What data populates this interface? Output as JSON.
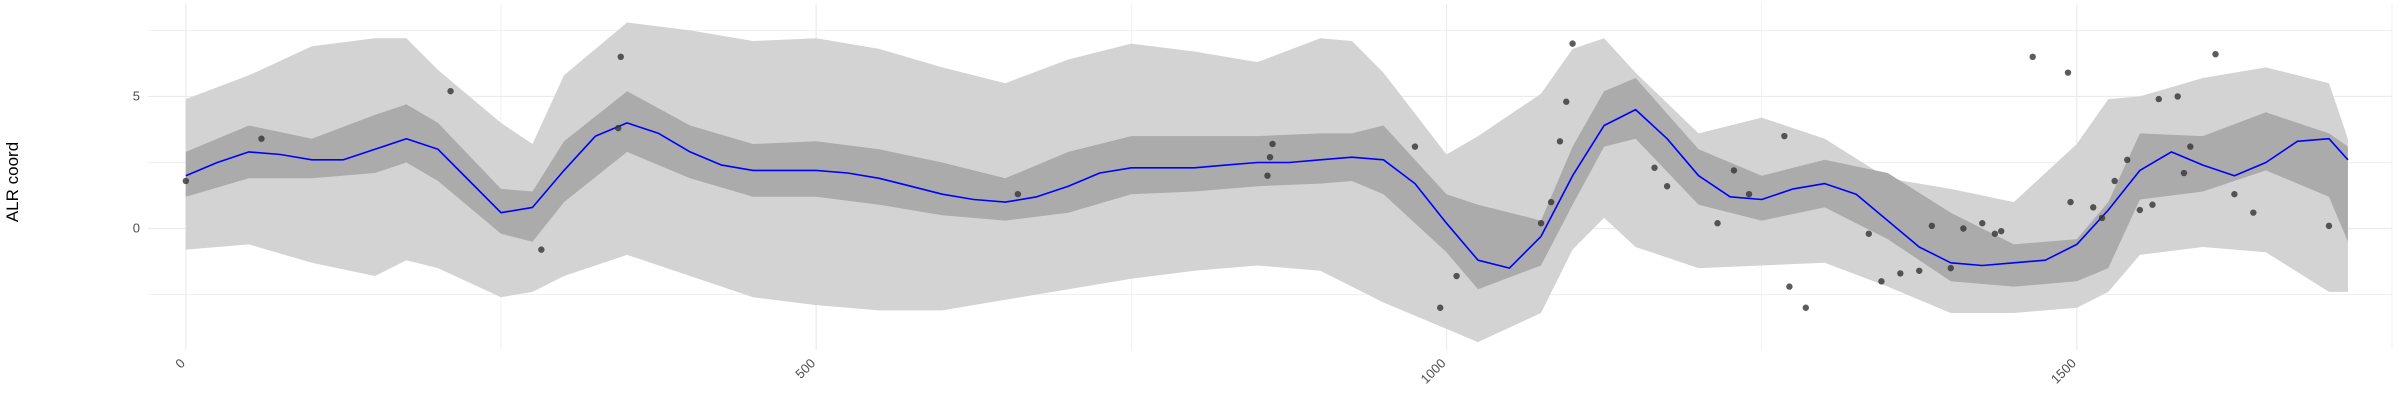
{
  "chart_data": {
    "type": "line",
    "title": "",
    "xlabel": "",
    "ylabel": "ALR coord",
    "xlim": [
      -30,
      1750
    ],
    "ylim": [
      -4.6,
      8.5
    ],
    "x_ticks": [
      0,
      500,
      1000,
      1500
    ],
    "x_tick_labels": [
      "0",
      "500",
      "1000",
      "1500"
    ],
    "y_ticks": [
      0,
      5
    ],
    "y_tick_labels": [
      "0",
      "5"
    ],
    "grid": true,
    "legend": "none",
    "colors": {
      "line": "#0000ff",
      "inner_band": "#ababab",
      "outer_band": "#d3d3d3",
      "points": "#333333",
      "grid": "#ebebeb"
    },
    "series": [
      {
        "type": "line",
        "x": [
          0,
          25,
          50,
          75,
          100,
          125,
          150,
          175,
          200,
          225,
          250,
          275,
          300,
          325,
          350,
          375,
          400,
          425,
          450,
          475,
          500,
          525,
          550,
          575,
          600,
          625,
          650,
          675,
          700,
          725,
          750,
          775,
          800,
          825,
          850,
          875,
          900,
          925,
          950,
          975,
          1000,
          1025,
          1050,
          1075,
          1100,
          1125,
          1150,
          1175,
          1200,
          1225,
          1250,
          1275,
          1300,
          1325,
          1350,
          1375,
          1400,
          1425,
          1450,
          1475,
          1500,
          1525,
          1550,
          1575,
          1600,
          1625,
          1650,
          1675,
          1700,
          1715
        ],
        "y": [
          2.0,
          2.5,
          2.9,
          2.8,
          2.6,
          2.6,
          3.0,
          3.4,
          3.0,
          1.8,
          0.6,
          0.8,
          2.2,
          3.5,
          4.0,
          3.6,
          2.9,
          2.4,
          2.2,
          2.2,
          2.2,
          2.1,
          1.9,
          1.6,
          1.3,
          1.1,
          1.0,
          1.2,
          1.6,
          2.1,
          2.3,
          2.3,
          2.3,
          2.4,
          2.5,
          2.5,
          2.6,
          2.7,
          2.6,
          1.7,
          0.2,
          -1.2,
          -1.5,
          -0.3,
          2.0,
          3.9,
          4.5,
          3.4,
          2.0,
          1.2,
          1.1,
          1.5,
          1.7,
          1.3,
          0.3,
          -0.7,
          -1.3,
          -1.4,
          -1.3,
          -1.2,
          -0.6,
          0.7,
          2.2,
          2.9,
          2.4,
          2.0,
          2.5,
          3.3,
          3.4,
          2.6
        ]
      },
      {
        "type": "band_inner",
        "x": [
          0,
          50,
          100,
          150,
          175,
          200,
          250,
          275,
          300,
          350,
          400,
          450,
          500,
          550,
          600,
          650,
          700,
          750,
          800,
          850,
          900,
          925,
          950,
          1000,
          1025,
          1075,
          1100,
          1125,
          1150,
          1200,
          1250,
          1300,
          1350,
          1400,
          1450,
          1500,
          1525,
          1550,
          1600,
          1650,
          1700,
          1715
        ],
        "low": [
          1.2,
          1.9,
          1.9,
          2.1,
          2.5,
          1.8,
          -0.2,
          -0.5,
          1.0,
          2.9,
          1.9,
          1.2,
          1.2,
          0.9,
          0.5,
          0.3,
          0.6,
          1.3,
          1.4,
          1.6,
          1.7,
          1.8,
          1.3,
          -0.9,
          -2.3,
          -1.4,
          0.9,
          3.1,
          3.4,
          0.9,
          0.3,
          0.8,
          -0.4,
          -2.0,
          -2.2,
          -2.0,
          -1.5,
          1.1,
          1.4,
          2.2,
          1.2,
          -0.5
        ],
        "high": [
          2.9,
          3.9,
          3.4,
          4.3,
          4.7,
          4.0,
          1.5,
          1.4,
          3.3,
          5.2,
          3.9,
          3.2,
          3.3,
          3.0,
          2.5,
          1.9,
          2.9,
          3.5,
          3.5,
          3.5,
          3.6,
          3.6,
          3.9,
          1.3,
          0.9,
          0.3,
          3.1,
          5.2,
          5.7,
          3.0,
          2.0,
          2.6,
          2.1,
          0.6,
          -0.6,
          -0.4,
          1.0,
          3.6,
          3.5,
          4.4,
          3.6,
          3.1
        ]
      },
      {
        "type": "band_outer",
        "x": [
          0,
          50,
          100,
          150,
          175,
          200,
          250,
          275,
          300,
          350,
          400,
          450,
          500,
          550,
          600,
          650,
          700,
          750,
          800,
          850,
          900,
          925,
          950,
          1000,
          1025,
          1075,
          1100,
          1125,
          1150,
          1200,
          1250,
          1300,
          1350,
          1400,
          1450,
          1500,
          1525,
          1550,
          1600,
          1650,
          1700,
          1715
        ],
        "low": [
          -0.8,
          -0.6,
          -1.3,
          -1.8,
          -1.2,
          -1.5,
          -2.6,
          -2.4,
          -1.8,
          -1.0,
          -1.8,
          -2.6,
          -2.9,
          -3.1,
          -3.1,
          -2.7,
          -2.3,
          -1.9,
          -1.6,
          -1.4,
          -1.6,
          -2.2,
          -2.8,
          -3.8,
          -4.3,
          -3.2,
          -0.8,
          0.4,
          -0.7,
          -1.5,
          -1.4,
          -1.3,
          -2.2,
          -3.2,
          -3.2,
          -3.0,
          -2.4,
          -1.0,
          -0.7,
          -0.9,
          -2.4,
          -2.4
        ],
        "high": [
          4.9,
          5.8,
          6.9,
          7.2,
          7.2,
          6.0,
          4.0,
          3.2,
          5.8,
          7.8,
          7.5,
          7.1,
          7.2,
          6.8,
          6.1,
          5.5,
          6.4,
          7.0,
          6.7,
          6.3,
          7.2,
          7.1,
          5.9,
          2.8,
          3.5,
          5.1,
          6.8,
          7.2,
          5.9,
          3.6,
          4.2,
          3.4,
          1.9,
          1.5,
          1.0,
          3.2,
          4.9,
          5.0,
          5.7,
          6.1,
          5.5,
          3.4
        ]
      },
      {
        "type": "scatter",
        "x": [
          0,
          60,
          210,
          282,
          345,
          343,
          660,
          860,
          862,
          858,
          975,
          995,
          1008,
          1075,
          1083,
          1090,
          1095,
          1100,
          1165,
          1175,
          1215,
          1228,
          1240,
          1268,
          1272,
          1285,
          1335,
          1345,
          1360,
          1375,
          1385,
          1400,
          1410,
          1425,
          1435,
          1440,
          1465,
          1493,
          1495,
          1513,
          1520,
          1530,
          1540,
          1550,
          1560,
          1565,
          1580,
          1585,
          1590,
          1610,
          1625,
          1640,
          1700
        ],
        "y": [
          1.8,
          3.4,
          5.2,
          -0.8,
          6.5,
          3.8,
          1.3,
          2.7,
          3.2,
          2.0,
          3.1,
          -3.0,
          -1.8,
          0.2,
          1.0,
          3.3,
          4.8,
          7.0,
          2.3,
          1.6,
          0.2,
          2.2,
          1.3,
          3.5,
          -2.2,
          -3.0,
          -0.2,
          -2.0,
          -1.7,
          -1.6,
          0.1,
          -1.5,
          0.0,
          0.2,
          -0.2,
          -0.1,
          6.5,
          5.9,
          1.0,
          0.8,
          0.4,
          1.8,
          2.6,
          0.7,
          0.9,
          4.9,
          5.0,
          2.1,
          3.1,
          6.6,
          1.3,
          0.6,
          0.1
        ]
      }
    ]
  }
}
